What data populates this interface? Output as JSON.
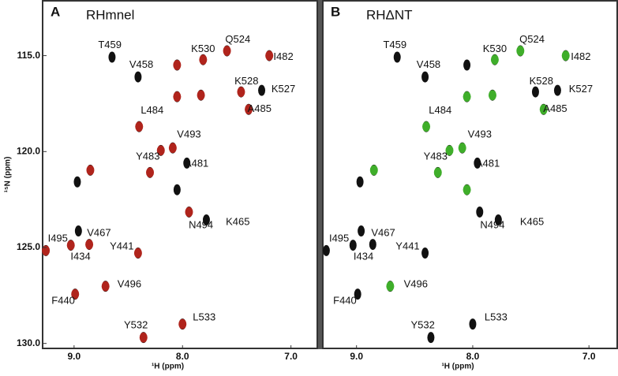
{
  "chart_data": [
    {
      "type": "scatter",
      "panel_label": "A",
      "title": "RHmnel",
      "x_label": "¹H (ppm)",
      "y_label": "¹⁵N (ppm)",
      "xlim": [
        9.29,
        6.75
      ],
      "ylim": [
        112.1,
        130.3
      ],
      "xticks": [
        {
          "value": 9,
          "label": "9.0"
        },
        {
          "value": 8,
          "label": "8.0"
        },
        {
          "value": 7,
          "label": "7.0"
        }
      ],
      "yticks": [
        {
          "value": 115,
          "label": "115.0"
        },
        {
          "value": 120,
          "label": "120.0"
        },
        {
          "value": 125,
          "label": "125.0"
        },
        {
          "value": 130,
          "label": "130.0"
        }
      ],
      "series": [
        {
          "color": "#111111",
          "x": [
            8.65,
            8.41,
            7.81,
            7.59,
            7.2,
            7.46,
            7.27,
            7.39,
            8.4,
            8.09,
            8.3,
            7.96,
            7.94,
            7.78,
            8.96,
            9.26,
            9.03,
            8.86,
            8.71,
            8.99,
            8.36,
            8.0,
            8.41,
            8.05,
            7.83,
            8.05,
            8.85,
            8.97,
            8.2,
            8.05
          ],
          "y": [
            115.08,
            116.11,
            115.21,
            114.75,
            115.0,
            116.89,
            116.81,
            117.8,
            118.7,
            119.81,
            121.09,
            120.6,
            123.15,
            123.56,
            124.14,
            125.16,
            124.88,
            124.84,
            127.02,
            127.43,
            129.69,
            128.99,
            125.29,
            115.49,
            117.06,
            117.14,
            120.97,
            121.58,
            119.94,
            121.99
          ]
        },
        {
          "color": "#b0241c",
          "x": [
            7.81,
            7.59,
            7.2,
            7.46,
            7.39,
            8.4,
            8.09,
            8.3,
            7.94,
            9.26,
            9.03,
            8.86,
            8.71,
            8.99,
            8.36,
            8.0,
            8.41,
            8.05,
            7.83,
            8.05,
            8.85,
            8.2
          ],
          "y": [
            115.21,
            114.75,
            115.0,
            116.89,
            117.8,
            118.7,
            119.81,
            121.09,
            123.15,
            125.16,
            124.88,
            124.84,
            127.02,
            127.43,
            129.69,
            128.99,
            125.29,
            115.49,
            117.06,
            117.14,
            120.97,
            119.94
          ]
        }
      ],
      "annotations": [
        {
          "text": "T459",
          "x": 8.67,
          "y": 114.47
        },
        {
          "text": "V458",
          "x": 8.38,
          "y": 115.49
        },
        {
          "text": "K530",
          "x": 7.81,
          "y": 114.67
        },
        {
          "text": "Q524",
          "x": 7.49,
          "y": 114.18
        },
        {
          "text": "I482",
          "x": 7.07,
          "y": 115.08
        },
        {
          "text": "K528",
          "x": 7.41,
          "y": 116.36
        },
        {
          "text": "K527",
          "x": 7.07,
          "y": 116.77
        },
        {
          "text": "A485",
          "x": 7.29,
          "y": 117.8
        },
        {
          "text": "L484",
          "x": 8.28,
          "y": 117.88
        },
        {
          "text": "V493",
          "x": 7.94,
          "y": 119.12
        },
        {
          "text": "Y483",
          "x": 8.32,
          "y": 120.27
        },
        {
          "text": "A481",
          "x": 7.87,
          "y": 120.64
        },
        {
          "text": "N494",
          "x": 7.83,
          "y": 123.85
        },
        {
          "text": "K465",
          "x": 7.49,
          "y": 123.68
        },
        {
          "text": "V467",
          "x": 8.77,
          "y": 124.26
        },
        {
          "text": "I495",
          "x": 9.15,
          "y": 124.55
        },
        {
          "text": "I434",
          "x": 8.94,
          "y": 125.49
        },
        {
          "text": "Y441",
          "x": 8.56,
          "y": 124.96
        },
        {
          "text": "V496",
          "x": 8.49,
          "y": 126.93
        },
        {
          "text": "F440",
          "x": 9.1,
          "y": 127.8
        },
        {
          "text": "Y532",
          "x": 8.43,
          "y": 129.07
        },
        {
          "text": "L533",
          "x": 7.8,
          "y": 128.66
        }
      ]
    },
    {
      "type": "scatter",
      "panel_label": "B",
      "title": "RHΔNT",
      "x_label": "¹H (ppm)",
      "xlim": [
        9.29,
        6.75
      ],
      "ylim": [
        112.1,
        130.3
      ],
      "xticks": [
        {
          "value": 9,
          "label": "9.0"
        },
        {
          "value": 8,
          "label": "8.0"
        },
        {
          "value": 7,
          "label": "7.0"
        }
      ],
      "series": [
        {
          "color": "#111111",
          "x": [
            8.65,
            8.41,
            7.81,
            7.59,
            7.2,
            7.46,
            7.27,
            7.39,
            8.4,
            8.09,
            8.3,
            7.96,
            7.94,
            7.78,
            8.96,
            9.26,
            9.03,
            8.86,
            8.71,
            8.99,
            8.36,
            8.0,
            8.41,
            8.05,
            7.83,
            8.05,
            8.85,
            8.97,
            8.2,
            8.05
          ],
          "y": [
            115.08,
            116.11,
            115.21,
            114.75,
            115.0,
            116.89,
            116.81,
            117.8,
            118.7,
            119.81,
            121.09,
            120.6,
            123.15,
            123.56,
            124.14,
            125.16,
            124.88,
            124.84,
            127.02,
            127.43,
            129.69,
            128.99,
            125.29,
            115.49,
            117.06,
            117.14,
            120.97,
            121.58,
            119.94,
            121.99
          ]
        },
        {
          "color": "#3fae2a",
          "x": [
            7.81,
            7.59,
            7.2,
            7.39,
            8.4,
            8.09,
            8.3,
            8.71,
            7.83,
            8.05,
            8.85,
            8.2,
            8.05
          ],
          "y": [
            115.21,
            114.75,
            115.0,
            117.8,
            118.7,
            119.81,
            121.09,
            127.02,
            117.06,
            117.14,
            120.97,
            119.94,
            121.99
          ]
        }
      ],
      "annotations": [
        {
          "text": "T459",
          "x": 8.67,
          "y": 114.47
        },
        {
          "text": "V458",
          "x": 8.38,
          "y": 115.49
        },
        {
          "text": "K530",
          "x": 7.81,
          "y": 114.67
        },
        {
          "text": "Q524",
          "x": 7.49,
          "y": 114.18
        },
        {
          "text": "I482",
          "x": 7.07,
          "y": 115.08
        },
        {
          "text": "K528",
          "x": 7.41,
          "y": 116.36
        },
        {
          "text": "K527",
          "x": 7.07,
          "y": 116.77
        },
        {
          "text": "A485",
          "x": 7.29,
          "y": 117.8
        },
        {
          "text": "L484",
          "x": 8.28,
          "y": 117.88
        },
        {
          "text": "V493",
          "x": 7.94,
          "y": 119.12
        },
        {
          "text": "Y483",
          "x": 8.32,
          "y": 120.27
        },
        {
          "text": "A481",
          "x": 7.87,
          "y": 120.64
        },
        {
          "text": "N494",
          "x": 7.83,
          "y": 123.85
        },
        {
          "text": "K465",
          "x": 7.49,
          "y": 123.68
        },
        {
          "text": "V467",
          "x": 8.77,
          "y": 124.26
        },
        {
          "text": "I495",
          "x": 9.15,
          "y": 124.55
        },
        {
          "text": "I434",
          "x": 8.94,
          "y": 125.49
        },
        {
          "text": "Y441",
          "x": 8.56,
          "y": 124.96
        },
        {
          "text": "V496",
          "x": 8.49,
          "y": 126.93
        },
        {
          "text": "F440",
          "x": 9.1,
          "y": 127.8
        },
        {
          "text": "Y532",
          "x": 8.43,
          "y": 129.07
        },
        {
          "text": "L533",
          "x": 7.8,
          "y": 128.66
        }
      ]
    }
  ]
}
